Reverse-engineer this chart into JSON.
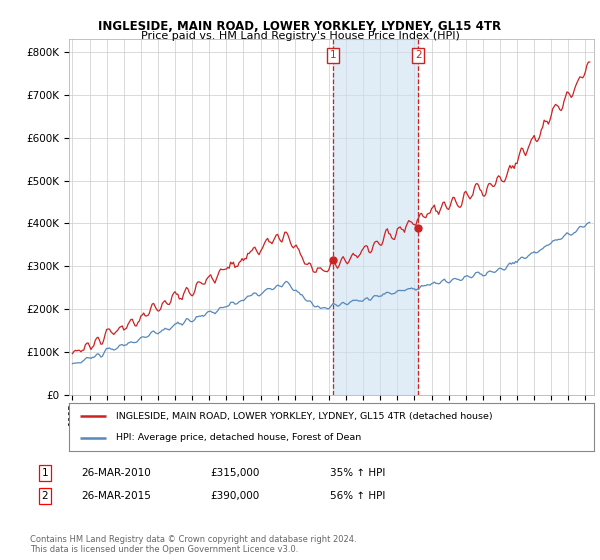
{
  "title1": "INGLESIDE, MAIN ROAD, LOWER YORKLEY, LYDNEY, GL15 4TR",
  "title2": "Price paid vs. HM Land Registry's House Price Index (HPI)",
  "ylabel_ticks": [
    "£0",
    "£100K",
    "£200K",
    "£300K",
    "£400K",
    "£500K",
    "£600K",
    "£700K",
    "£800K"
  ],
  "ytick_vals": [
    0,
    100000,
    200000,
    300000,
    400000,
    500000,
    600000,
    700000,
    800000
  ],
  "ylim": [
    0,
    830000
  ],
  "xlim_start": 1994.8,
  "xlim_end": 2025.5,
  "hpi_color": "#5588bb",
  "property_color": "#cc2222",
  "sale1_x": 2010.23,
  "sale1_y": 315000,
  "sale2_x": 2015.23,
  "sale2_y": 390000,
  "vline_color": "#cc2222",
  "shade_color": "#cce0f0",
  "legend_label1": "INGLESIDE, MAIN ROAD, LOWER YORKLEY, LYDNEY, GL15 4TR (detached house)",
  "legend_label2": "HPI: Average price, detached house, Forest of Dean",
  "table_row1_num": "1",
  "table_row1_date": "26-MAR-2010",
  "table_row1_price": "£315,000",
  "table_row1_hpi": "35% ↑ HPI",
  "table_row2_num": "2",
  "table_row2_date": "26-MAR-2015",
  "table_row2_price": "£390,000",
  "table_row2_hpi": "56% ↑ HPI",
  "footer": "Contains HM Land Registry data © Crown copyright and database right 2024.\nThis data is licensed under the Open Government Licence v3.0.",
  "bg_color": "#ffffff",
  "grid_color": "#cccccc"
}
